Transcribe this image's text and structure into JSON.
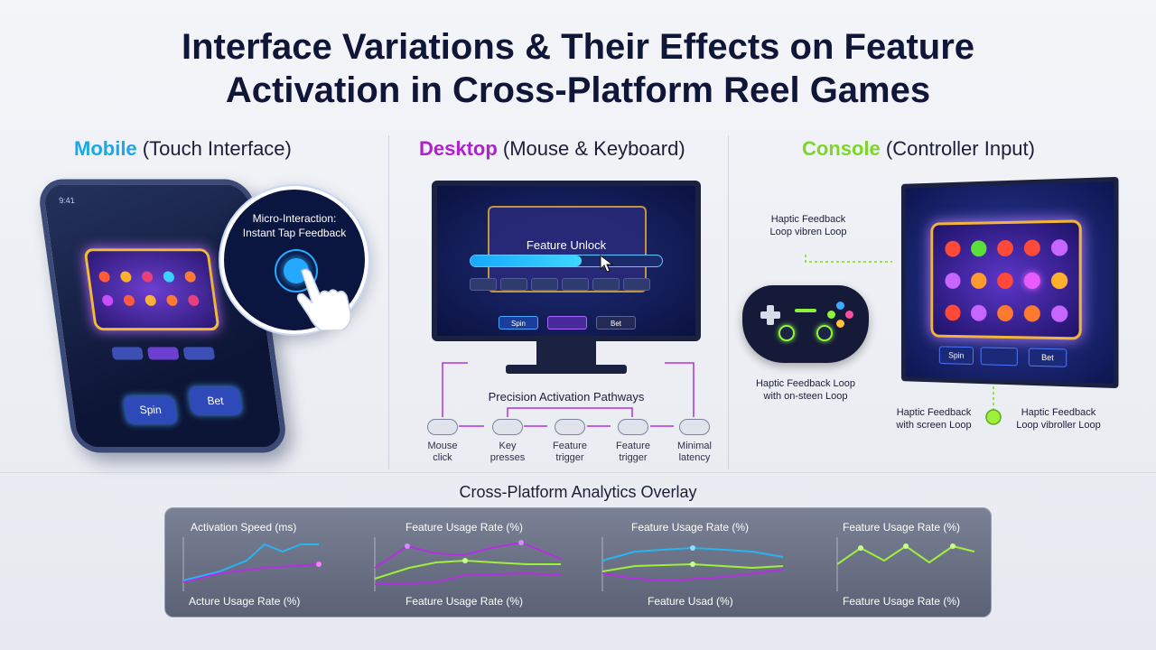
{
  "title_line1": "Interface Variations & Their Effects on Feature",
  "title_line2": "Activation in Cross-Platform Reel Games",
  "columns": {
    "mobile": {
      "key": "Mobile",
      "rest": " (Touch Interface)",
      "color": "#19a8e8"
    },
    "desktop": {
      "key": "Desktop",
      "rest": " (Mouse & Keyboard)",
      "color": "#b21fd1"
    },
    "console": {
      "key": "Console",
      "rest": " (Controller Input)",
      "color": "#7dd62a"
    }
  },
  "mobile": {
    "time": "9:41",
    "spin": "Spin",
    "bet": "Bet",
    "bubble_line1": "Micro-Interaction:",
    "bubble_line2": "Instant Tap Feedback"
  },
  "desktop": {
    "unlock_label": "Feature Unlock",
    "unlock_progress": 0.58,
    "spin": "Spin",
    "bet": "Bet",
    "pathways_title": "Precision Activation Pathways",
    "steps": [
      {
        "line1": "Mouse",
        "line2": "click"
      },
      {
        "line1": "Key",
        "line2": "presses"
      },
      {
        "line1": "Feature",
        "line2": "trigger"
      },
      {
        "line1": "Feature",
        "line2": "trigger"
      },
      {
        "line1": "Minimal",
        "line2": "latency"
      }
    ]
  },
  "console": {
    "spin": "Spin",
    "bet": "Bet",
    "note_top_line1": "Haptic Feedback",
    "note_top_line2": "Loop vibren Loop",
    "note_mid_line1": "Haptic Feedback Loop",
    "note_mid_line2": "with on-steen Loop",
    "note_left_line1": "Haptic Feedback",
    "note_left_line2": "with screen Loop",
    "note_right_line1": "Haptic Feedback",
    "note_right_line2": "Loop vibroller Loop"
  },
  "analytics": {
    "title": "Cross-Platform Analytics Overlay",
    "labels_top": [
      "Activation Speed (ms)",
      "Feature Usage Rate (%)",
      "Feature Usage Rate (%)",
      "Feature Usage Rate (%)"
    ],
    "labels_bottom": [
      "Acture Usage Rate (%)",
      "Feature Usage Rate (%)",
      "Feature Usad (%)",
      "Feature Usage Rate (%)"
    ]
  },
  "colors": {
    "cyan": "#27b4f0",
    "purple": "#b430e0",
    "green": "#9ef03a"
  }
}
